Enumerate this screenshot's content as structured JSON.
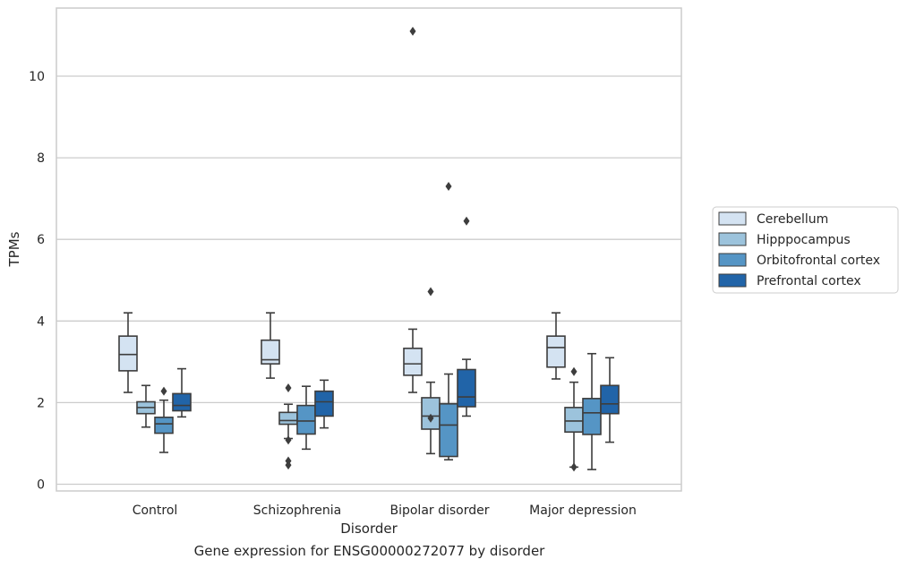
{
  "caption": "Gene expression for ENSG00000272077 by disorder",
  "chart_data": {
    "type": "boxplot",
    "xlabel": "Disorder",
    "ylabel": "TPMs",
    "ylim": [
      -0.15,
      11.7
    ],
    "yticks": [
      0,
      2,
      4,
      6,
      8,
      10
    ],
    "grid": "horizontal",
    "legend_position": "right",
    "categories": [
      "Control",
      "Schizophrenia",
      "Bipolar disorder",
      "Major depression"
    ],
    "colors": [
      "#d4e3f2",
      "#9cc3dc",
      "#5595c5",
      "#2164a8"
    ],
    "series": [
      {
        "name": "Cerebellum",
        "boxes": [
          {
            "whislo": 2.25,
            "q1": 2.78,
            "med": 3.18,
            "q3": 3.63,
            "whishi": 4.2,
            "fliers": []
          },
          {
            "whislo": 2.6,
            "q1": 2.95,
            "med": 3.05,
            "q3": 3.53,
            "whishi": 4.2,
            "fliers": []
          },
          {
            "whislo": 2.25,
            "q1": 2.67,
            "med": 2.95,
            "q3": 3.33,
            "whishi": 3.8,
            "fliers": [
              11.1
            ]
          },
          {
            "whislo": 2.58,
            "q1": 2.87,
            "med": 3.35,
            "q3": 3.63,
            "whishi": 4.2,
            "fliers": []
          }
        ]
      },
      {
        "name": "Hipppocampus",
        "boxes": [
          {
            "whislo": 1.4,
            "q1": 1.73,
            "med": 1.88,
            "q3": 2.02,
            "whishi": 2.42,
            "fliers": []
          },
          {
            "whislo": 1.12,
            "q1": 1.47,
            "med": 1.56,
            "q3": 1.76,
            "whishi": 1.96,
            "fliers": [
              2.36,
              1.08,
              0.57,
              0.47
            ]
          },
          {
            "whislo": 0.75,
            "q1": 1.35,
            "med": 1.67,
            "q3": 2.12,
            "whishi": 2.5,
            "fliers": [
              4.72,
              1.62
            ]
          },
          {
            "whislo": 0.42,
            "q1": 1.28,
            "med": 1.55,
            "q3": 1.88,
            "whishi": 2.5,
            "fliers": [
              2.76,
              0.42
            ]
          }
        ]
      },
      {
        "name": "Orbitofrontal cortex",
        "boxes": [
          {
            "whislo": 0.78,
            "q1": 1.25,
            "med": 1.48,
            "q3": 1.64,
            "whishi": 2.06,
            "fliers": [
              2.28
            ]
          },
          {
            "whislo": 0.86,
            "q1": 1.23,
            "med": 1.55,
            "q3": 1.93,
            "whishi": 2.4,
            "fliers": []
          },
          {
            "whislo": 0.6,
            "q1": 0.68,
            "med": 1.45,
            "q3": 1.97,
            "whishi": 2.7,
            "fliers": [
              7.3
            ]
          },
          {
            "whislo": 0.36,
            "q1": 1.22,
            "med": 1.75,
            "q3": 2.1,
            "whishi": 3.2,
            "fliers": []
          }
        ]
      },
      {
        "name": "Prefrontal cortex",
        "boxes": [
          {
            "whislo": 1.65,
            "q1": 1.8,
            "med": 1.93,
            "q3": 2.22,
            "whishi": 2.83,
            "fliers": []
          },
          {
            "whislo": 1.38,
            "q1": 1.67,
            "med": 2.02,
            "q3": 2.28,
            "whishi": 2.55,
            "fliers": []
          },
          {
            "whislo": 1.67,
            "q1": 1.9,
            "med": 2.14,
            "q3": 2.81,
            "whishi": 3.06,
            "fliers": [
              6.45
            ]
          },
          {
            "whislo": 1.03,
            "q1": 1.73,
            "med": 1.97,
            "q3": 2.42,
            "whishi": 3.1,
            "fliers": []
          }
        ]
      }
    ]
  }
}
